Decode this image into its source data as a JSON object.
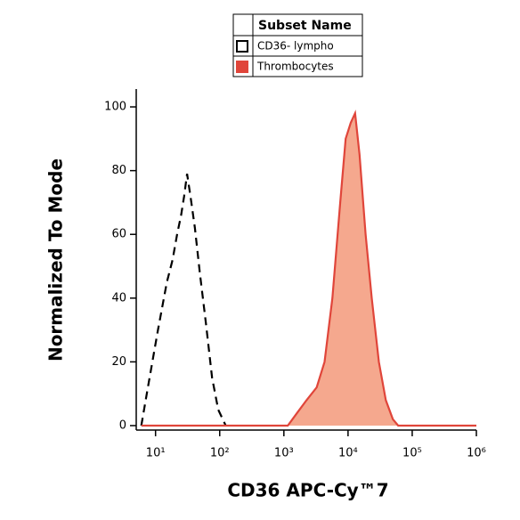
{
  "chart_data": {
    "type": "histogram-overlay",
    "legend_title": "Subset Name",
    "x_label": "CD36 APC-Cy™7",
    "y_label": "Normalized To Mode",
    "x_scale": "log",
    "xlim": [
      5,
      1000000
    ],
    "ylim": [
      -1.4,
      105.6
    ],
    "xticks": [
      {
        "value": 10,
        "label": "10¹"
      },
      {
        "value": 100,
        "label": "10²"
      },
      {
        "value": 1000,
        "label": "10³"
      },
      {
        "value": 10000,
        "label": "10⁴"
      },
      {
        "value": 100000,
        "label": "10⁵"
      },
      {
        "value": 1000000,
        "label": "10⁶"
      }
    ],
    "yticks": [
      0,
      20,
      40,
      60,
      80,
      100
    ],
    "series": [
      {
        "name": "CD36- lympho",
        "color": "#000000",
        "fill": null,
        "line_style": "dashed",
        "x": [
          6,
          7.6,
          10.9,
          15,
          18.4,
          21.7,
          25,
          27.9,
          31,
          35,
          41,
          49,
          61,
          76,
          95,
          124
        ],
        "values": [
          0,
          12,
          30,
          45,
          52,
          60,
          66,
          72,
          79,
          72,
          62,
          48,
          32,
          15,
          5,
          0
        ]
      },
      {
        "name": "Thrombocytes",
        "color": "#e0453a",
        "fill": "#f5a88e",
        "line_style": "solid",
        "x": [
          6,
          1150,
          1610,
          2260,
          3250,
          4310,
          5700,
          7550,
          9190,
          11000,
          12900,
          15100,
          18800,
          23400,
          30200,
          38800,
          50000,
          60400,
          1000000
        ],
        "values": [
          0,
          0,
          4,
          8,
          12,
          20,
          40,
          70,
          90,
          95,
          98,
          85,
          60,
          40,
          20,
          8,
          2,
          0,
          0
        ]
      }
    ]
  }
}
